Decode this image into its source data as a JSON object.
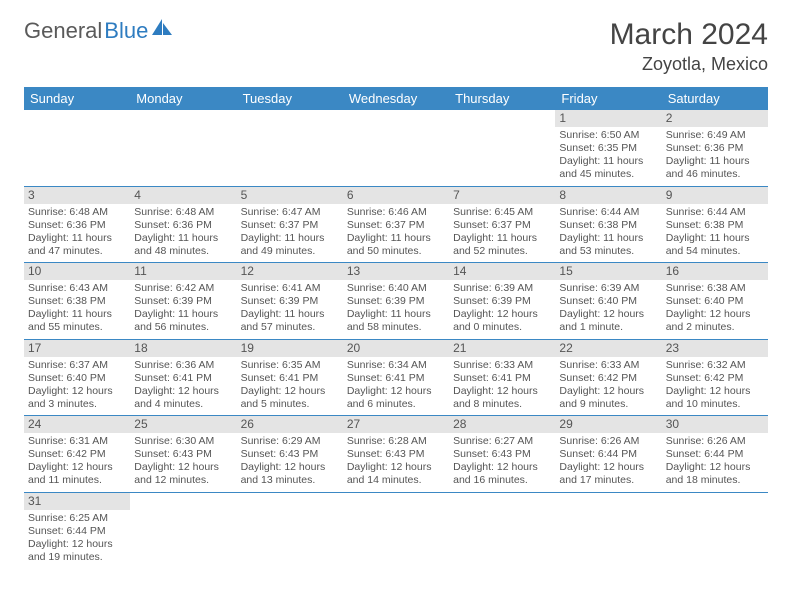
{
  "logo": {
    "text1": "General",
    "text2": "Blue",
    "accent_color": "#2e7cc0"
  },
  "title": "March 2024",
  "location": "Zoyotla, Mexico",
  "header_bg": "#3b88c4",
  "daynum_bg": "#e4e4e4",
  "day_headers": [
    "Sunday",
    "Monday",
    "Tuesday",
    "Wednesday",
    "Thursday",
    "Friday",
    "Saturday"
  ],
  "weeks": [
    [
      null,
      null,
      null,
      null,
      null,
      {
        "n": "1",
        "sr": "Sunrise: 6:50 AM",
        "ss": "Sunset: 6:35 PM",
        "d1": "Daylight: 11 hours",
        "d2": "and 45 minutes."
      },
      {
        "n": "2",
        "sr": "Sunrise: 6:49 AM",
        "ss": "Sunset: 6:36 PM",
        "d1": "Daylight: 11 hours",
        "d2": "and 46 minutes."
      }
    ],
    [
      {
        "n": "3",
        "sr": "Sunrise: 6:48 AM",
        "ss": "Sunset: 6:36 PM",
        "d1": "Daylight: 11 hours",
        "d2": "and 47 minutes."
      },
      {
        "n": "4",
        "sr": "Sunrise: 6:48 AM",
        "ss": "Sunset: 6:36 PM",
        "d1": "Daylight: 11 hours",
        "d2": "and 48 minutes."
      },
      {
        "n": "5",
        "sr": "Sunrise: 6:47 AM",
        "ss": "Sunset: 6:37 PM",
        "d1": "Daylight: 11 hours",
        "d2": "and 49 minutes."
      },
      {
        "n": "6",
        "sr": "Sunrise: 6:46 AM",
        "ss": "Sunset: 6:37 PM",
        "d1": "Daylight: 11 hours",
        "d2": "and 50 minutes."
      },
      {
        "n": "7",
        "sr": "Sunrise: 6:45 AM",
        "ss": "Sunset: 6:37 PM",
        "d1": "Daylight: 11 hours",
        "d2": "and 52 minutes."
      },
      {
        "n": "8",
        "sr": "Sunrise: 6:44 AM",
        "ss": "Sunset: 6:38 PM",
        "d1": "Daylight: 11 hours",
        "d2": "and 53 minutes."
      },
      {
        "n": "9",
        "sr": "Sunrise: 6:44 AM",
        "ss": "Sunset: 6:38 PM",
        "d1": "Daylight: 11 hours",
        "d2": "and 54 minutes."
      }
    ],
    [
      {
        "n": "10",
        "sr": "Sunrise: 6:43 AM",
        "ss": "Sunset: 6:38 PM",
        "d1": "Daylight: 11 hours",
        "d2": "and 55 minutes."
      },
      {
        "n": "11",
        "sr": "Sunrise: 6:42 AM",
        "ss": "Sunset: 6:39 PM",
        "d1": "Daylight: 11 hours",
        "d2": "and 56 minutes."
      },
      {
        "n": "12",
        "sr": "Sunrise: 6:41 AM",
        "ss": "Sunset: 6:39 PM",
        "d1": "Daylight: 11 hours",
        "d2": "and 57 minutes."
      },
      {
        "n": "13",
        "sr": "Sunrise: 6:40 AM",
        "ss": "Sunset: 6:39 PM",
        "d1": "Daylight: 11 hours",
        "d2": "and 58 minutes."
      },
      {
        "n": "14",
        "sr": "Sunrise: 6:39 AM",
        "ss": "Sunset: 6:39 PM",
        "d1": "Daylight: 12 hours",
        "d2": "and 0 minutes."
      },
      {
        "n": "15",
        "sr": "Sunrise: 6:39 AM",
        "ss": "Sunset: 6:40 PM",
        "d1": "Daylight: 12 hours",
        "d2": "and 1 minute."
      },
      {
        "n": "16",
        "sr": "Sunrise: 6:38 AM",
        "ss": "Sunset: 6:40 PM",
        "d1": "Daylight: 12 hours",
        "d2": "and 2 minutes."
      }
    ],
    [
      {
        "n": "17",
        "sr": "Sunrise: 6:37 AM",
        "ss": "Sunset: 6:40 PM",
        "d1": "Daylight: 12 hours",
        "d2": "and 3 minutes."
      },
      {
        "n": "18",
        "sr": "Sunrise: 6:36 AM",
        "ss": "Sunset: 6:41 PM",
        "d1": "Daylight: 12 hours",
        "d2": "and 4 minutes."
      },
      {
        "n": "19",
        "sr": "Sunrise: 6:35 AM",
        "ss": "Sunset: 6:41 PM",
        "d1": "Daylight: 12 hours",
        "d2": "and 5 minutes."
      },
      {
        "n": "20",
        "sr": "Sunrise: 6:34 AM",
        "ss": "Sunset: 6:41 PM",
        "d1": "Daylight: 12 hours",
        "d2": "and 6 minutes."
      },
      {
        "n": "21",
        "sr": "Sunrise: 6:33 AM",
        "ss": "Sunset: 6:41 PM",
        "d1": "Daylight: 12 hours",
        "d2": "and 8 minutes."
      },
      {
        "n": "22",
        "sr": "Sunrise: 6:33 AM",
        "ss": "Sunset: 6:42 PM",
        "d1": "Daylight: 12 hours",
        "d2": "and 9 minutes."
      },
      {
        "n": "23",
        "sr": "Sunrise: 6:32 AM",
        "ss": "Sunset: 6:42 PM",
        "d1": "Daylight: 12 hours",
        "d2": "and 10 minutes."
      }
    ],
    [
      {
        "n": "24",
        "sr": "Sunrise: 6:31 AM",
        "ss": "Sunset: 6:42 PM",
        "d1": "Daylight: 12 hours",
        "d2": "and 11 minutes."
      },
      {
        "n": "25",
        "sr": "Sunrise: 6:30 AM",
        "ss": "Sunset: 6:43 PM",
        "d1": "Daylight: 12 hours",
        "d2": "and 12 minutes."
      },
      {
        "n": "26",
        "sr": "Sunrise: 6:29 AM",
        "ss": "Sunset: 6:43 PM",
        "d1": "Daylight: 12 hours",
        "d2": "and 13 minutes."
      },
      {
        "n": "27",
        "sr": "Sunrise: 6:28 AM",
        "ss": "Sunset: 6:43 PM",
        "d1": "Daylight: 12 hours",
        "d2": "and 14 minutes."
      },
      {
        "n": "28",
        "sr": "Sunrise: 6:27 AM",
        "ss": "Sunset: 6:43 PM",
        "d1": "Daylight: 12 hours",
        "d2": "and 16 minutes."
      },
      {
        "n": "29",
        "sr": "Sunrise: 6:26 AM",
        "ss": "Sunset: 6:44 PM",
        "d1": "Daylight: 12 hours",
        "d2": "and 17 minutes."
      },
      {
        "n": "30",
        "sr": "Sunrise: 6:26 AM",
        "ss": "Sunset: 6:44 PM",
        "d1": "Daylight: 12 hours",
        "d2": "and 18 minutes."
      }
    ],
    [
      {
        "n": "31",
        "sr": "Sunrise: 6:25 AM",
        "ss": "Sunset: 6:44 PM",
        "d1": "Daylight: 12 hours",
        "d2": "and 19 minutes."
      },
      null,
      null,
      null,
      null,
      null,
      null
    ]
  ]
}
